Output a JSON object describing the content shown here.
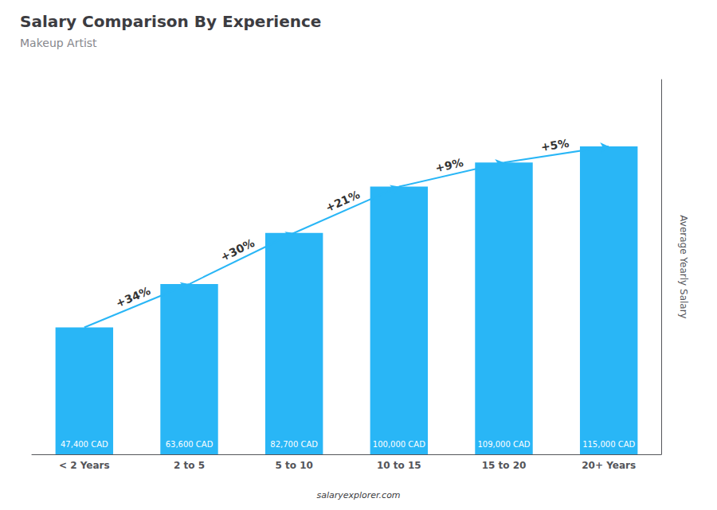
{
  "chart_data": {
    "type": "bar",
    "title": "Salary Comparison By Experience",
    "subtitle": "Makeup Artist",
    "ylabel": "Average Yearly Salary",
    "categories": [
      "< 2 Years",
      "2 to 5",
      "5 to 10",
      "10 to 15",
      "15 to 20",
      "20+ Years"
    ],
    "values": [
      47400,
      63600,
      82700,
      100000,
      109000,
      115000
    ],
    "value_labels": [
      "47,400 CAD",
      "63,600 CAD",
      "82,700 CAD",
      "100,000 CAD",
      "109,000 CAD",
      "115,000 CAD"
    ],
    "data_labels": true,
    "annotations": [
      "+34%",
      "+30%",
      "+21%",
      "+9%",
      "+5%"
    ],
    "watermark": "salaryexplorer.com",
    "color": "#29b6f6",
    "ylim": [
      0,
      140000
    ],
    "tick_labels": "x",
    "grid": false
  }
}
